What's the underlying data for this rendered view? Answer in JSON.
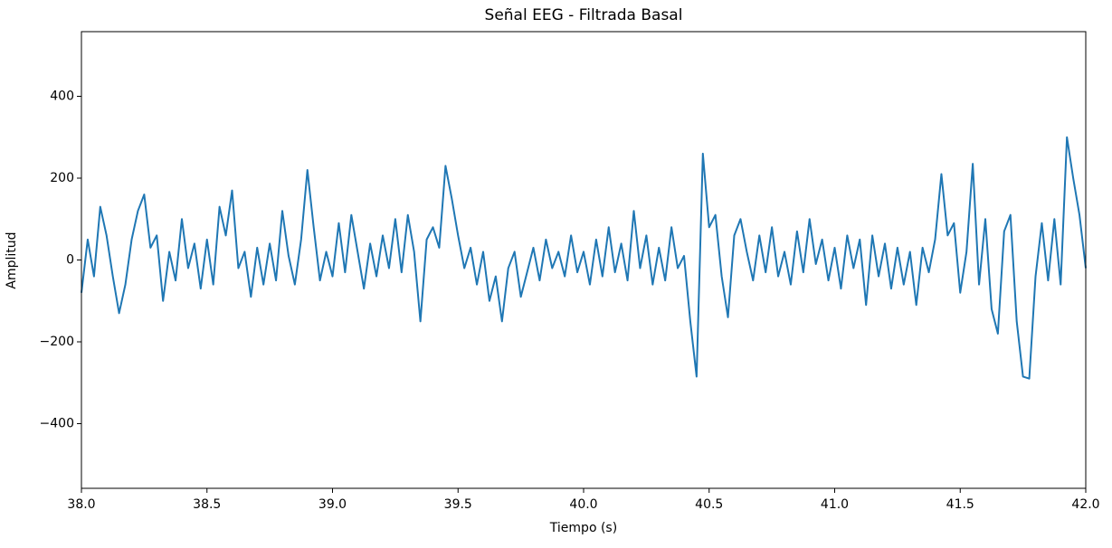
{
  "chart_data": {
    "type": "line",
    "title": "Señal EEG - Filtrada Basal",
    "xlabel": "Tiempo (s)",
    "ylabel": "Amplitud",
    "color": "#1f77b4",
    "x": [
      38,
      38.025,
      38.05,
      38.075,
      38.1,
      38.125,
      38.15,
      38.175,
      38.2,
      38.225,
      38.25,
      38.275,
      38.3,
      38.325,
      38.35,
      38.375,
      38.4,
      38.425,
      38.45,
      38.475,
      38.5,
      38.525,
      38.55,
      38.575,
      38.6,
      38.625,
      38.65,
      38.675,
      38.7,
      38.725,
      38.75,
      38.775,
      38.8,
      38.825,
      38.85,
      38.875,
      38.9,
      38.925,
      38.95,
      38.975,
      39,
      39.025,
      39.05,
      39.075,
      39.1,
      39.125,
      39.15,
      39.175,
      39.2,
      39.225,
      39.25,
      39.275,
      39.3,
      39.325,
      39.35,
      39.375,
      39.4,
      39.425,
      39.45,
      39.475,
      39.5,
      39.525,
      39.55,
      39.575,
      39.6,
      39.625,
      39.65,
      39.675,
      39.7,
      39.725,
      39.75,
      39.775,
      39.8,
      39.825,
      39.85,
      39.875,
      39.9,
      39.925,
      39.95,
      39.975,
      40,
      40.025,
      40.05,
      40.075,
      40.1,
      40.125,
      40.15,
      40.175,
      40.2,
      40.225,
      40.25,
      40.275,
      40.3,
      40.325,
      40.35,
      40.375,
      40.4,
      40.425,
      40.45,
      40.475,
      40.5,
      40.525,
      40.55,
      40.575,
      40.6,
      40.625,
      40.65,
      40.675,
      40.7,
      40.725,
      40.75,
      40.775,
      40.8,
      40.825,
      40.85,
      40.875,
      40.9,
      40.925,
      40.95,
      40.975,
      41,
      41.025,
      41.05,
      41.075,
      41.1,
      41.125,
      41.15,
      41.175,
      41.2,
      41.225,
      41.25,
      41.275,
      41.3,
      41.325,
      41.35,
      41.375,
      41.4,
      41.425,
      41.45,
      41.475,
      41.5,
      41.525,
      41.55,
      41.575,
      41.6,
      41.625,
      41.65,
      41.675,
      41.7,
      41.725,
      41.75,
      41.775,
      41.8,
      41.825,
      41.85,
      41.875,
      41.9,
      41.925,
      41.95,
      41.975,
      42
    ],
    "values": [
      -80,
      50,
      -40,
      130,
      60,
      -40,
      -130,
      -60,
      50,
      120,
      160,
      30,
      60,
      -100,
      20,
      -50,
      100,
      -20,
      40,
      -70,
      50,
      -60,
      130,
      60,
      170,
      -20,
      20,
      -90,
      30,
      -60,
      40,
      -50,
      120,
      10,
      -60,
      50,
      220,
      80,
      -50,
      20,
      -40,
      90,
      -30,
      110,
      20,
      -70,
      40,
      -40,
      60,
      -20,
      100,
      -30,
      110,
      20,
      -150,
      50,
      80,
      30,
      230,
      150,
      60,
      -20,
      30,
      -60,
      20,
      -100,
      -40,
      -150,
      -20,
      20,
      -90,
      -30,
      30,
      -50,
      50,
      -20,
      20,
      -40,
      60,
      -30,
      20,
      -60,
      50,
      -40,
      80,
      -30,
      40,
      -50,
      120,
      -20,
      60,
      -60,
      30,
      -50,
      80,
      -20,
      10,
      -150,
      -285,
      260,
      80,
      110,
      -40,
      -140,
      60,
      100,
      20,
      -50,
      60,
      -30,
      80,
      -40,
      20,
      -60,
      70,
      -30,
      100,
      -10,
      50,
      -50,
      30,
      -70,
      60,
      -20,
      50,
      -110,
      60,
      -40,
      40,
      -70,
      30,
      -60,
      20,
      -110,
      30,
      -30,
      50,
      210,
      60,
      90,
      -80,
      20,
      235,
      -60,
      100,
      -120,
      -180,
      70,
      110,
      -150,
      -285,
      -290,
      -40,
      90,
      -50,
      100,
      -60,
      300,
      200,
      110,
      -20
    ],
    "xlim": [
      38,
      42
    ],
    "ylim": [
      -558,
      558
    ],
    "xticks": [
      {
        "value": 38,
        "label": "38.0"
      },
      38.5,
      {
        "value": 39,
        "label": "39.0"
      },
      39.5,
      {
        "value": 40,
        "label": "40.0"
      },
      40.5,
      {
        "value": 41,
        "label": "41.0"
      },
      41.5,
      {
        "value": 42,
        "label": "42.0"
      }
    ],
    "yticks": [
      {
        "value": -400,
        "label": "−400"
      },
      {
        "value": -200,
        "label": "−200"
      },
      0,
      200,
      400
    ]
  }
}
